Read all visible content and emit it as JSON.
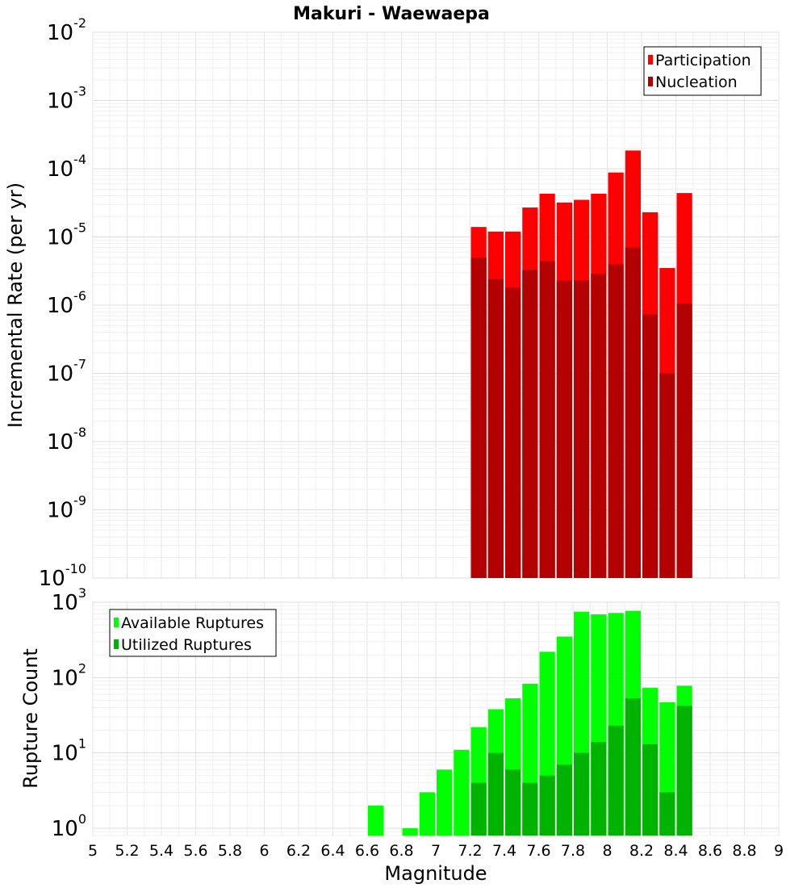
{
  "chart_data": {
    "title": "Makuri - Waewaepa",
    "xlabel": "Magnitude",
    "xlim": [
      5,
      9
    ],
    "x_ticks": [
      "5",
      "5.2",
      "5.4",
      "5.6",
      "5.8",
      "6",
      "6.2",
      "6.4",
      "6.6",
      "6.8",
      "7",
      "7.2",
      "7.4",
      "7.6",
      "7.8",
      "8",
      "8.2",
      "8.4",
      "8.6",
      "8.8",
      "9"
    ],
    "panels": [
      {
        "type": "bar",
        "ylabel": "Incremental Rate (per yr)",
        "yscale": "log",
        "ylim": [
          1e-10,
          0.01
        ],
        "y_ticks": [
          {
            "base": "10",
            "exp": "-10",
            "value": 1e-10
          },
          {
            "base": "10",
            "exp": "-9",
            "value": 1e-09
          },
          {
            "base": "10",
            "exp": "-8",
            "value": 1e-08
          },
          {
            "base": "10",
            "exp": "-7",
            "value": 1e-07
          },
          {
            "base": "10",
            "exp": "-6",
            "value": 1e-06
          },
          {
            "base": "10",
            "exp": "-5",
            "value": 1e-05
          },
          {
            "base": "10",
            "exp": "-4",
            "value": 0.0001
          },
          {
            "base": "10",
            "exp": "-3",
            "value": 0.001
          },
          {
            "base": "10",
            "exp": "-2",
            "value": 0.01
          }
        ],
        "legend_position": "top-right",
        "grid": true,
        "series": [
          {
            "name": "Participation",
            "color": "#ff0000",
            "x": [
              7.25,
              7.35,
              7.45,
              7.55,
              7.65,
              7.75,
              7.85,
              7.95,
              8.05,
              8.15,
              8.25,
              8.35,
              8.45
            ],
            "values": [
              1.4e-05,
              1.2e-05,
              1.2e-05,
              2.7e-05,
              4.3e-05,
              3.2e-05,
              3.5e-05,
              4.3e-05,
              8.8e-05,
              0.000185,
              2.3e-05,
              3.5e-06,
              4.4e-05
            ]
          },
          {
            "name": "Nucleation",
            "color": "#b30000",
            "x": [
              7.25,
              7.35,
              7.45,
              7.55,
              7.65,
              7.75,
              7.85,
              7.95,
              8.05,
              8.15,
              8.25,
              8.35,
              8.45
            ],
            "values": [
              5e-06,
              2.4e-06,
              1.8e-06,
              3.3e-06,
              4.4e-06,
              2.3e-06,
              2.3e-06,
              2.9e-06,
              4e-06,
              7e-06,
              7.3e-07,
              1e-07,
              1.05e-06
            ]
          }
        ]
      },
      {
        "type": "bar",
        "ylabel": "Rupture Count",
        "yscale": "log",
        "ylim": [
          0.8,
          1000
        ],
        "y_ticks": [
          {
            "base": "10",
            "exp": "0",
            "value": 1
          },
          {
            "base": "10",
            "exp": "1",
            "value": 10
          },
          {
            "base": "10",
            "exp": "2",
            "value": 100
          },
          {
            "base": "10",
            "exp": "3",
            "value": 1000
          }
        ],
        "legend_position": "top-left",
        "grid": true,
        "series": [
          {
            "name": "Available Ruptures",
            "color": "#00ff00",
            "x": [
              6.65,
              6.85,
              6.95,
              7.05,
              7.15,
              7.25,
              7.35,
              7.45,
              7.55,
              7.65,
              7.75,
              7.85,
              7.95,
              8.05,
              8.15,
              8.25,
              8.35,
              8.45
            ],
            "values": [
              2,
              1,
              3,
              6,
              11,
              22,
              38,
              53,
              83,
              220,
              350,
              750,
              690,
              720,
              770,
              73,
              47,
              78
            ]
          },
          {
            "name": "Utilized Ruptures",
            "color": "#00b300",
            "x": [
              7.25,
              7.35,
              7.45,
              7.55,
              7.65,
              7.75,
              7.85,
              7.95,
              8.05,
              8.15,
              8.25,
              8.35,
              8.45
            ],
            "values": [
              4,
              10,
              6,
              4,
              5,
              7,
              10,
              14,
              23,
              53,
              13,
              3,
              42
            ]
          }
        ]
      }
    ]
  }
}
